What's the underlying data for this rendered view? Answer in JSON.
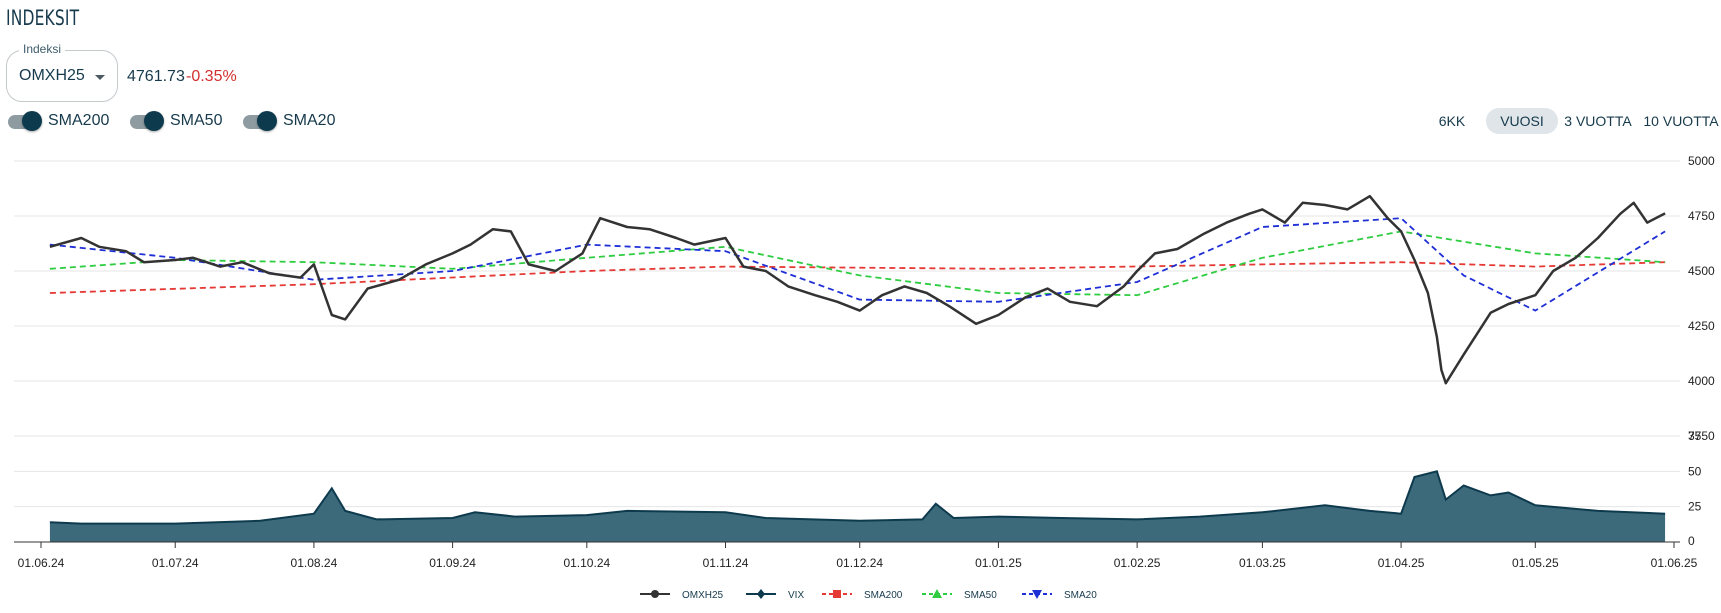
{
  "page": {
    "title": "INDEKSIT"
  },
  "index_selector": {
    "label": "Indeksi",
    "value": "OMXH25",
    "icon": "caret-down-icon"
  },
  "quote": {
    "price": "4761.73",
    "change": "-0.35%",
    "change_color": "#d32f2f"
  },
  "toggles": [
    {
      "label": "SMA200",
      "on": true
    },
    {
      "label": "SMA50",
      "on": true
    },
    {
      "label": "SMA20",
      "on": true
    }
  ],
  "ranges": [
    {
      "label": "6KK",
      "active": false
    },
    {
      "label": "VUOSI",
      "active": true
    },
    {
      "label": "3 VUOTTA",
      "active": false
    },
    {
      "label": "10 VUOTTA",
      "active": false
    }
  ],
  "chart_data": [
    {
      "type": "line",
      "x_ticks": [
        "01.06.24",
        "01.07.24",
        "01.08.24",
        "01.09.24",
        "01.10.24",
        "01.11.24",
        "01.12.24",
        "01.01.25",
        "01.02.25",
        "01.03.25",
        "01.04.25",
        "01.05.25",
        "01.06.25"
      ],
      "x_range": [
        "03.06.24",
        "30.05.25"
      ],
      "y_ticks": [
        "5000",
        "4750",
        "4500",
        "4250",
        "4000",
        "3750"
      ],
      "ylim": [
        3750,
        5000
      ],
      "grid": true,
      "series": [
        {
          "name": "OMXH25",
          "color": "#333333",
          "style": "solid",
          "points": [
            [
              "03.06.24",
              4610
            ],
            [
              "10.06.24",
              4650
            ],
            [
              "14.06.24",
              4610
            ],
            [
              "20.06.24",
              4590
            ],
            [
              "24.06.24",
              4540
            ],
            [
              "01.07.24",
              4550
            ],
            [
              "05.07.24",
              4560
            ],
            [
              "11.07.24",
              4520
            ],
            [
              "16.07.24",
              4540
            ],
            [
              "22.07.24",
              4490
            ],
            [
              "29.07.24",
              4470
            ],
            [
              "01.08.24",
              4530
            ],
            [
              "05.08.24",
              4300
            ],
            [
              "08.08.24",
              4280
            ],
            [
              "13.08.24",
              4420
            ],
            [
              "20.08.24",
              4460
            ],
            [
              "26.08.24",
              4530
            ],
            [
              "01.09.24",
              4580
            ],
            [
              "05.09.24",
              4620
            ],
            [
              "10.09.24",
              4690
            ],
            [
              "14.09.24",
              4680
            ],
            [
              "18.09.24",
              4530
            ],
            [
              "24.09.24",
              4500
            ],
            [
              "30.09.24",
              4580
            ],
            [
              "01.10.24",
              4620
            ],
            [
              "04.10.24",
              4740
            ],
            [
              "10.10.24",
              4700
            ],
            [
              "15.10.24",
              4690
            ],
            [
              "21.10.24",
              4650
            ],
            [
              "25.10.24",
              4620
            ],
            [
              "01.11.24",
              4650
            ],
            [
              "05.11.24",
              4520
            ],
            [
              "10.11.24",
              4500
            ],
            [
              "15.11.24",
              4430
            ],
            [
              "21.11.24",
              4390
            ],
            [
              "26.11.24",
              4360
            ],
            [
              "01.12.24",
              4320
            ],
            [
              "06.12.24",
              4390
            ],
            [
              "11.12.24",
              4430
            ],
            [
              "16.12.24",
              4400
            ],
            [
              "21.12.24",
              4340
            ],
            [
              "27.12.24",
              4260
            ],
            [
              "01.01.25",
              4300
            ],
            [
              "07.01.25",
              4380
            ],
            [
              "12.01.25",
              4420
            ],
            [
              "17.01.25",
              4360
            ],
            [
              "23.01.25",
              4340
            ],
            [
              "29.01.25",
              4430
            ],
            [
              "01.02.25",
              4500
            ],
            [
              "05.02.25",
              4580
            ],
            [
              "10.02.25",
              4600
            ],
            [
              "16.02.25",
              4670
            ],
            [
              "21.02.25",
              4720
            ],
            [
              "26.02.25",
              4760
            ],
            [
              "01.03.25",
              4780
            ],
            [
              "06.03.25",
              4720
            ],
            [
              "10.03.25",
              4810
            ],
            [
              "15.03.25",
              4800
            ],
            [
              "20.03.25",
              4780
            ],
            [
              "25.03.25",
              4840
            ],
            [
              "29.03.25",
              4740
            ],
            [
              "01.04.25",
              4680
            ],
            [
              "04.04.25",
              4550
            ],
            [
              "07.04.25",
              4400
            ],
            [
              "09.04.25",
              4200
            ],
            [
              "10.04.25",
              4050
            ],
            [
              "11.04.25",
              3990
            ],
            [
              "15.04.25",
              4120
            ],
            [
              "21.04.25",
              4310
            ],
            [
              "25.04.25",
              4350
            ],
            [
              "01.05.25",
              4390
            ],
            [
              "05.05.25",
              4500
            ],
            [
              "10.05.25",
              4560
            ],
            [
              "15.05.25",
              4650
            ],
            [
              "20.05.25",
              4760
            ],
            [
              "23.05.25",
              4810
            ],
            [
              "26.05.25",
              4720
            ],
            [
              "30.05.25",
              4762
            ]
          ]
        },
        {
          "name": "SMA200",
          "color": "#e53935",
          "style": "dashed",
          "points": [
            [
              "03.06.24",
              4400
            ],
            [
              "01.08.24",
              4440
            ],
            [
              "01.10.24",
              4500
            ],
            [
              "01.11.24",
              4520
            ],
            [
              "01.01.25",
              4510
            ],
            [
              "01.03.25",
              4530
            ],
            [
              "01.04.25",
              4540
            ],
            [
              "01.05.25",
              4520
            ],
            [
              "30.05.25",
              4540
            ]
          ]
        },
        {
          "name": "SMA50",
          "color": "#2ecc40",
          "style": "dashed",
          "points": [
            [
              "03.06.24",
              4510
            ],
            [
              "01.07.24",
              4550
            ],
            [
              "01.08.24",
              4540
            ],
            [
              "01.09.24",
              4510
            ],
            [
              "01.10.24",
              4560
            ],
            [
              "01.11.24",
              4610
            ],
            [
              "01.12.24",
              4480
            ],
            [
              "01.01.25",
              4400
            ],
            [
              "01.02.25",
              4390
            ],
            [
              "01.03.25",
              4560
            ],
            [
              "01.04.25",
              4680
            ],
            [
              "01.05.25",
              4580
            ],
            [
              "30.05.25",
              4540
            ]
          ]
        },
        {
          "name": "SMA20",
          "color": "#1f2fd6",
          "style": "dashed",
          "points": [
            [
              "03.06.24",
              4620
            ],
            [
              "01.07.24",
              4560
            ],
            [
              "01.08.24",
              4460
            ],
            [
              "01.09.24",
              4500
            ],
            [
              "01.10.24",
              4620
            ],
            [
              "01.11.24",
              4590
            ],
            [
              "01.12.24",
              4370
            ],
            [
              "01.01.25",
              4360
            ],
            [
              "01.02.25",
              4450
            ],
            [
              "01.03.25",
              4700
            ],
            [
              "01.04.25",
              4740
            ],
            [
              "15.04.25",
              4480
            ],
            [
              "01.05.25",
              4320
            ],
            [
              "30.05.25",
              4680
            ]
          ]
        }
      ]
    },
    {
      "type": "area",
      "y_ticks": [
        "75",
        "50",
        "25",
        "0"
      ],
      "ylim": [
        0,
        75
      ],
      "series": [
        {
          "name": "VIX",
          "color": "#0e3a4e",
          "fill": "#3c6a7a",
          "points": [
            [
              "03.06.24",
              14
            ],
            [
              "10.06.24",
              13
            ],
            [
              "01.07.24",
              13
            ],
            [
              "20.07.24",
              15
            ],
            [
              "01.08.24",
              20
            ],
            [
              "05.08.24",
              38
            ],
            [
              "08.08.24",
              22
            ],
            [
              "15.08.24",
              16
            ],
            [
              "01.09.24",
              17
            ],
            [
              "06.09.24",
              21
            ],
            [
              "15.09.24",
              18
            ],
            [
              "01.10.24",
              19
            ],
            [
              "10.10.24",
              22
            ],
            [
              "01.11.24",
              21
            ],
            [
              "10.11.24",
              17
            ],
            [
              "01.12.24",
              15
            ],
            [
              "15.12.24",
              16
            ],
            [
              "18.12.24",
              27
            ],
            [
              "22.12.24",
              17
            ],
            [
              "01.01.25",
              18
            ],
            [
              "15.01.25",
              17
            ],
            [
              "01.02.25",
              16
            ],
            [
              "15.02.25",
              18
            ],
            [
              "01.03.25",
              21
            ],
            [
              "15.03.25",
              26
            ],
            [
              "25.03.25",
              22
            ],
            [
              "01.04.25",
              20
            ],
            [
              "04.04.25",
              46
            ],
            [
              "09.04.25",
              50
            ],
            [
              "11.04.25",
              30
            ],
            [
              "15.04.25",
              40
            ],
            [
              "21.04.25",
              33
            ],
            [
              "25.04.25",
              35
            ],
            [
              "01.05.25",
              26
            ],
            [
              "15.05.25",
              22
            ],
            [
              "30.05.25",
              20
            ]
          ]
        }
      ]
    }
  ],
  "legend": [
    {
      "label": "OMXH25",
      "color": "#333333",
      "marker": "circle",
      "dashed": false
    },
    {
      "label": "VIX",
      "color": "#0e3a4e",
      "marker": "diamond",
      "dashed": false
    },
    {
      "label": "SMA200",
      "color": "#e53935",
      "marker": "square",
      "dashed": true
    },
    {
      "label": "SMA50",
      "color": "#2ecc40",
      "marker": "triangle",
      "dashed": true
    },
    {
      "label": "SMA20",
      "color": "#1f2fd6",
      "marker": "triangle-down",
      "dashed": true
    }
  ]
}
